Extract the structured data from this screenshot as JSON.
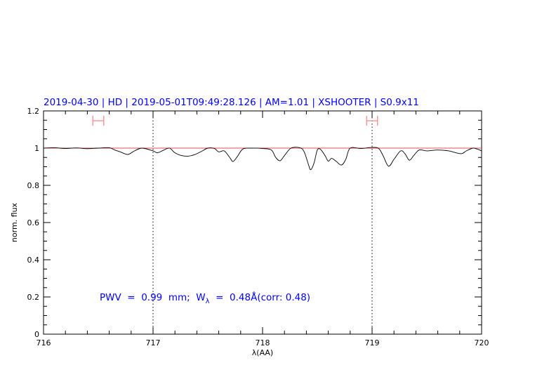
{
  "chart_data": {
    "type": "line",
    "title": "2019-04-30 | HD | 2019-05-01T09:49:28.126 | AM=1.01 | XSHOOTER | S0.9x11",
    "xlabel": "λ(AA)",
    "ylabel": "norm. flux",
    "xlim": [
      716,
      720
    ],
    "ylim": [
      0,
      1.2
    ],
    "x_ticks": [
      716,
      717,
      718,
      719,
      720
    ],
    "x_tick_labels": [
      "716",
      "717",
      "718",
      "719",
      "720"
    ],
    "y_ticks": [
      0,
      0.2,
      0.4,
      0.6,
      0.8,
      1,
      1.2
    ],
    "y_tick_labels": [
      "0",
      "0.2",
      "0.4",
      "0.6",
      "0.8",
      "1",
      "1.2"
    ],
    "grid": false,
    "reference_line": 1.0,
    "vertical_markers": [
      717,
      719
    ],
    "error_bars": [
      {
        "x_range": [
          716.45,
          716.55
        ],
        "y": 1.147
      },
      {
        "x_range": [
          718.95,
          719.05
        ],
        "y": 1.147
      }
    ],
    "annotation": {
      "prefix": "PWV  =  0.99  mm;  W",
      "sub": "λ",
      "suffix": "  =  0.48Å(corr: 0.48)"
    },
    "series": [
      {
        "color": "#000000",
        "x": [
          716.0,
          716.1,
          716.2,
          716.3,
          716.4,
          716.5,
          716.6,
          716.65,
          716.7,
          716.77,
          716.83,
          716.9,
          717.0,
          717.04,
          717.1,
          717.15,
          717.2,
          717.26,
          717.32,
          717.38,
          717.45,
          717.5,
          717.56,
          717.6,
          717.65,
          717.7,
          717.73,
          717.77,
          717.82,
          717.9,
          718.0,
          718.08,
          718.12,
          718.16,
          718.2,
          718.26,
          718.34,
          718.38,
          718.42,
          718.44,
          718.47,
          718.5,
          718.53,
          718.57,
          718.6,
          718.63,
          718.67,
          718.72,
          718.76,
          718.8,
          718.9,
          719.0,
          719.06,
          719.1,
          719.15,
          719.2,
          719.26,
          719.3,
          719.34,
          719.38,
          719.43,
          719.5,
          719.6,
          719.7,
          719.81,
          719.86,
          719.92,
          719.96,
          720.0
        ],
        "y": [
          1.0,
          1.002,
          0.998,
          1.001,
          0.997,
          1.0,
          1.002,
          0.99,
          0.98,
          0.966,
          0.985,
          1.0,
          0.985,
          0.975,
          0.99,
          1.0,
          0.975,
          0.96,
          0.957,
          0.965,
          0.985,
          1.0,
          0.998,
          0.98,
          0.985,
          0.95,
          0.928,
          0.955,
          0.995,
          1.0,
          0.998,
          0.99,
          0.95,
          0.932,
          0.96,
          1.0,
          1.002,
          0.98,
          0.91,
          0.884,
          0.92,
          0.99,
          0.993,
          0.96,
          0.93,
          0.945,
          0.93,
          0.909,
          0.94,
          1.0,
          0.998,
          1.004,
          0.998,
          0.96,
          0.903,
          0.94,
          0.985,
          0.97,
          0.935,
          0.96,
          0.99,
          0.985,
          0.99,
          0.985,
          0.97,
          0.985,
          1.0,
          0.995,
          0.985
        ]
      }
    ]
  }
}
